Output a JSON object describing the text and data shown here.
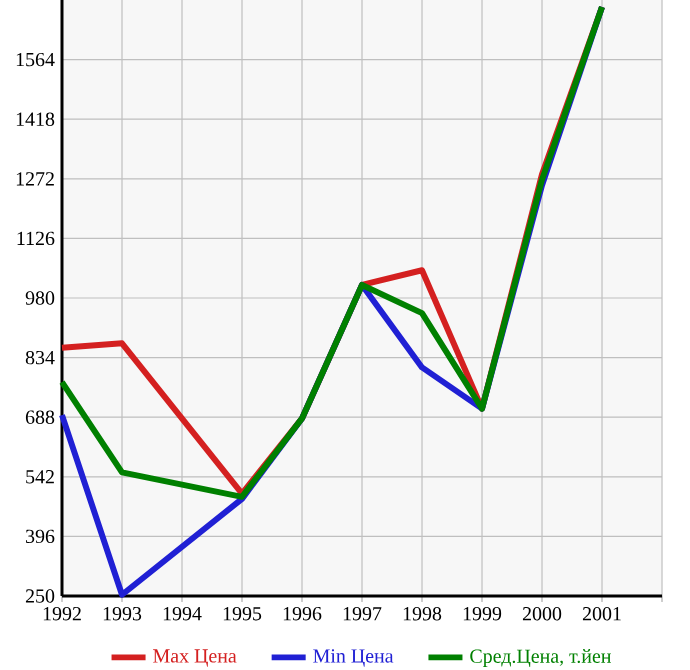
{
  "chart_data": {
    "type": "line",
    "x": [
      1992,
      1993,
      1995,
      1996,
      1997,
      1998,
      1999,
      2000,
      2001
    ],
    "series": [
      {
        "name": "Max Цена",
        "color": "#d42020",
        "values": [
          858,
          869,
          501,
          685,
          1012,
          1048,
          709,
          1283,
          1693
        ]
      },
      {
        "name": "Min Цена",
        "color": "#2020d4",
        "values": [
          693,
          253,
          488,
          685,
          1012,
          810,
          709,
          1256,
          1693
        ]
      },
      {
        "name": "Сред.Цена, т.йен",
        "color": "#008000",
        "values": [
          774,
          553,
          493,
          685,
          1012,
          943,
          709,
          1270,
          1693
        ]
      }
    ],
    "xlim": [
      1992,
      2002
    ],
    "xticks": [
      1992,
      1993,
      1994,
      1995,
      1996,
      1997,
      1998,
      1999,
      2000,
      2001,
      {
        "value": 2002,
        "label": null
      }
    ],
    "ylim": [
      250,
      1710
    ],
    "yticks": [
      250,
      396,
      542,
      688,
      834,
      980,
      1126,
      1272,
      1418,
      1564
    ],
    "grid": true,
    "legend": "bottom",
    "marker": "none"
  }
}
